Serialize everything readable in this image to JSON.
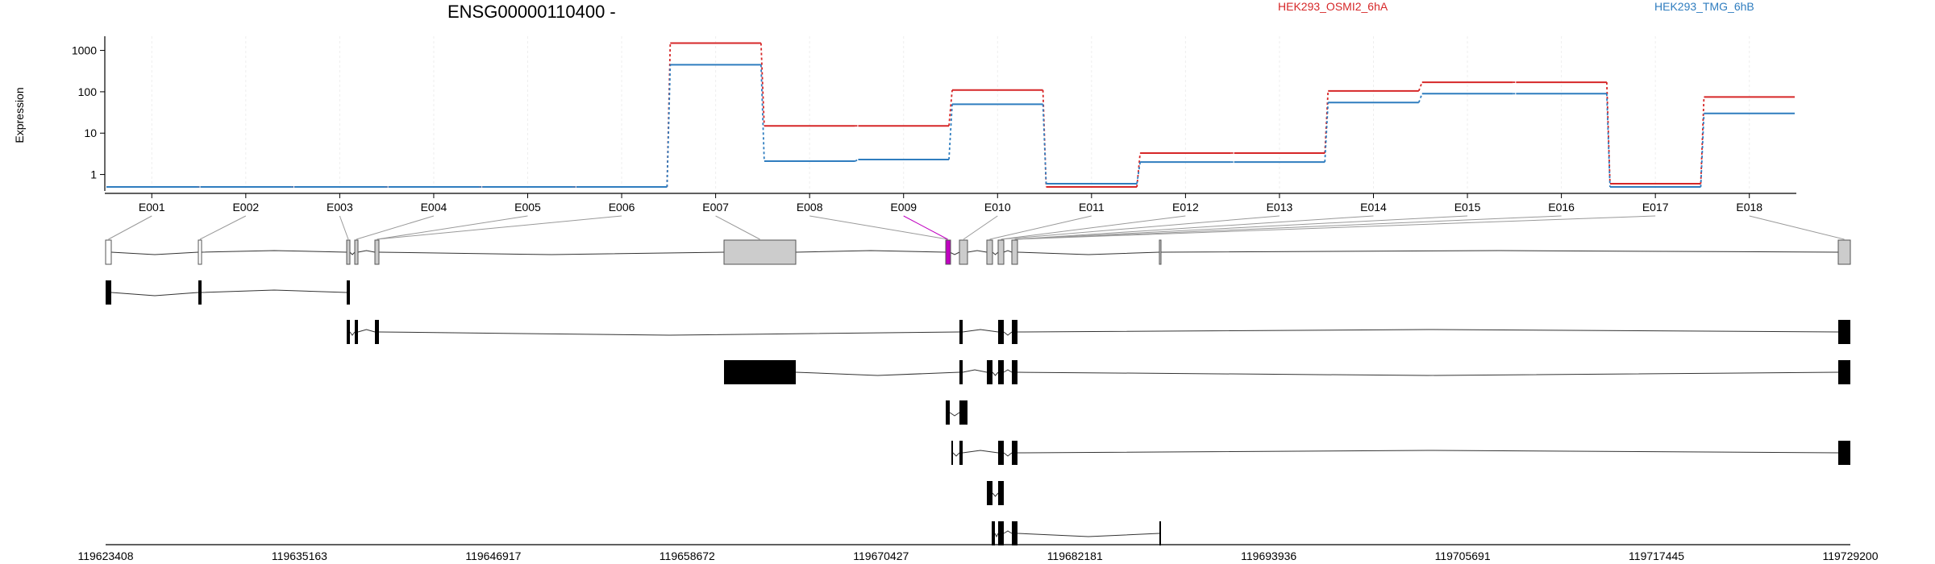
{
  "chart_data": {
    "type": "line",
    "title": "ENSG00000110400 -",
    "ylabel": "Expression",
    "yscale": "log",
    "ylim": [
      0.5,
      1500
    ],
    "yticks": [
      1,
      10,
      100,
      1000
    ],
    "ytick_labels": [
      "1",
      "10",
      "100",
      "1000"
    ],
    "categories": [
      "E001",
      "E002",
      "E003",
      "E004",
      "E005",
      "E006",
      "E007",
      "E008",
      "E009",
      "E010",
      "E011",
      "E012",
      "E013",
      "E014",
      "E015",
      "E016",
      "E017",
      "E018"
    ],
    "series": [
      {
        "name": "HEK293_OSMI2_6hA",
        "color": "#d62728",
        "values": [
          0.5,
          0.5,
          0.5,
          0.5,
          0.5,
          0.5,
          1500,
          15,
          15,
          110,
          0.5,
          3.3,
          3.3,
          105,
          170,
          170,
          0.6,
          75
        ]
      },
      {
        "name": "HEK293_TMG_6hB",
        "color": "#2f7dbf",
        "values": [
          0.5,
          0.5,
          0.5,
          0.5,
          0.5,
          0.5,
          450,
          2.1,
          2.3,
          50,
          0.6,
          2.0,
          2.0,
          55,
          90,
          90,
          0.5,
          30
        ]
      }
    ],
    "genomic_axis": {
      "tick_labels": [
        "119623408",
        "119635163",
        "119646917",
        "119658672",
        "119670427",
        "119682181",
        "119693936",
        "119705691",
        "119717445",
        "119729200"
      ]
    },
    "highlighted_exon": "E009",
    "highlight_color": "#c000c0",
    "transcript_count": 7
  }
}
